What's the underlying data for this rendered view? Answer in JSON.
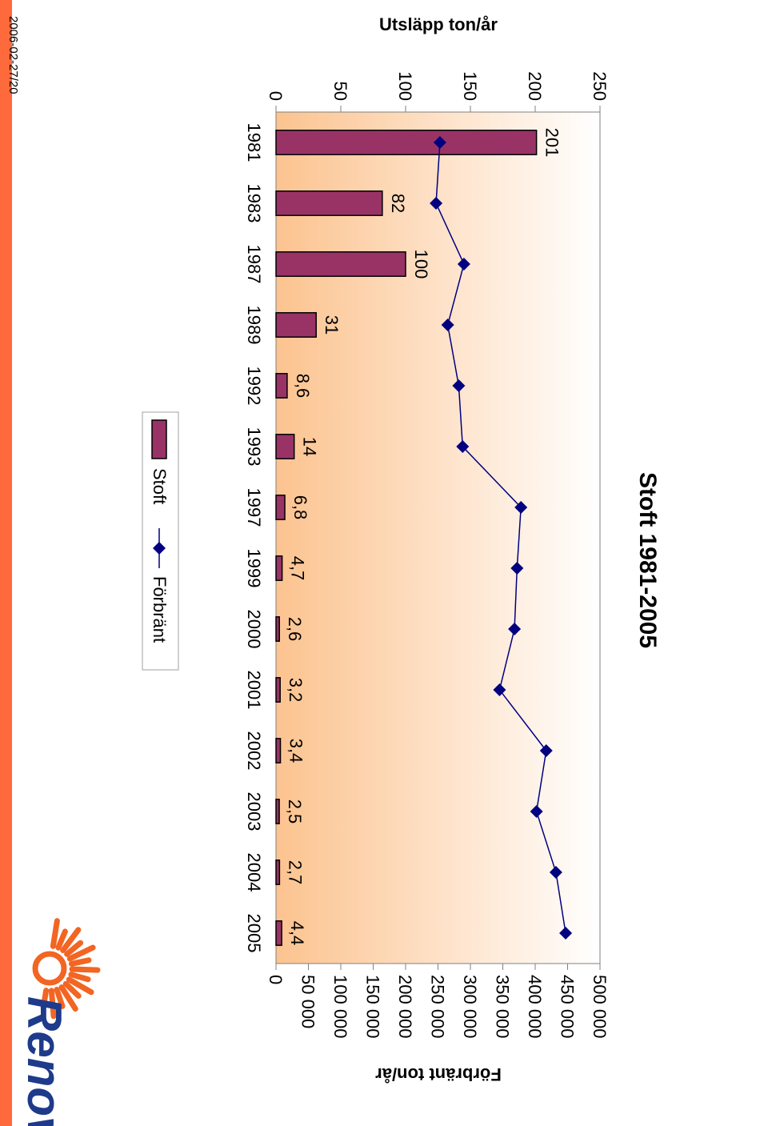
{
  "date": "2006-02-27/20",
  "logo": {
    "text": "Renova",
    "color": "#1e3a8a",
    "sun_color": "#f26522"
  },
  "colors": {
    "stripe": "#ff6a3d",
    "bar": "#993366",
    "line": "#000080",
    "gradient_top": "#ffffff",
    "gradient_bottom": "#fcc38f"
  },
  "chart_data": {
    "type": "bar",
    "title": "Stoft 1981-2005",
    "ylabel": "Utsläpp ton/år",
    "y2label": "Förbränt ton/år",
    "categories": [
      "1981",
      "1983",
      "1987",
      "1989",
      "1992",
      "1993",
      "1997",
      "1999",
      "2000",
      "2001",
      "2002",
      "2003",
      "2004",
      "2005"
    ],
    "ylim": [
      0,
      250
    ],
    "yticks": [
      "0",
      "50",
      "100",
      "150",
      "200",
      "250"
    ],
    "y2lim": [
      0,
      500000
    ],
    "y2ticks": [
      "0",
      "50 000",
      "100 000",
      "150 000",
      "200 000",
      "250 000",
      "300 000",
      "350 000",
      "400 000",
      "450 000",
      "500 000"
    ],
    "grid": false,
    "legend_position": "bottom",
    "series": [
      {
        "name": "Stoft",
        "type": "bar",
        "axis": "left",
        "color": "#993366",
        "values": [
          201,
          82,
          100,
          31,
          8.6,
          14,
          6.8,
          4.7,
          2.6,
          3.2,
          3.4,
          2.5,
          2.7,
          4.4
        ],
        "labels": [
          "201",
          "82",
          "100",
          "31",
          "8,6",
          "14",
          "6,8",
          "4,7",
          "2,6",
          "3,2",
          "3,4",
          "2,5",
          "2,7",
          "4,4"
        ]
      },
      {
        "name": "Förbränt",
        "type": "line",
        "axis": "right",
        "marker": "diamond",
        "color": "#000080",
        "values": [
          253000,
          247000,
          290000,
          265000,
          282000,
          288000,
          378000,
          372000,
          368000,
          345000,
          417000,
          402000,
          432000,
          447000
        ]
      }
    ]
  }
}
